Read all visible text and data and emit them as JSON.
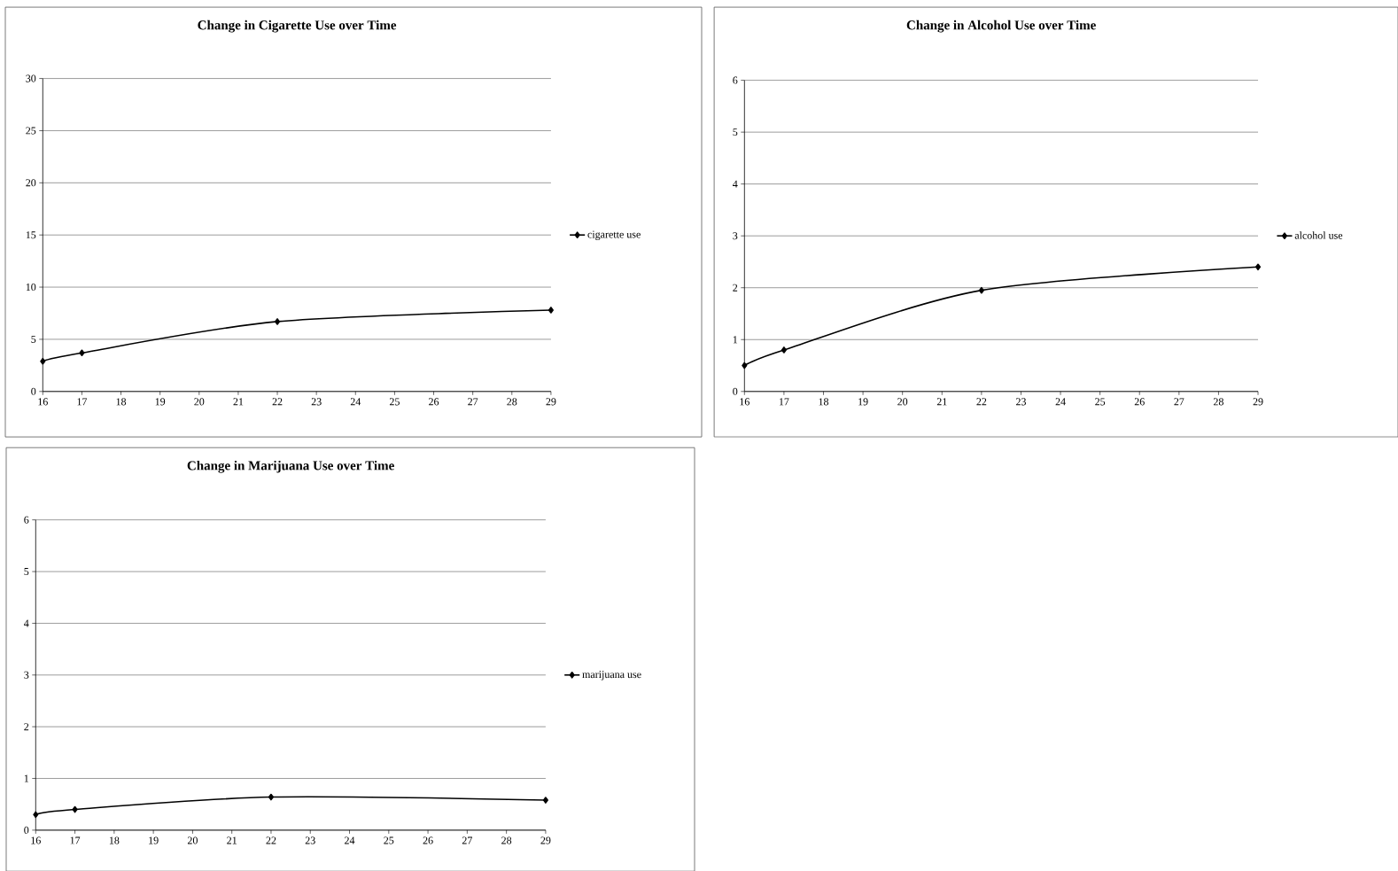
{
  "chart_data": [
    {
      "type": "line",
      "title": "Change in Cigarette Use over Time",
      "x": [
        16,
        17,
        22,
        29
      ],
      "series": [
        {
          "name": "cigarette use",
          "color": "#000000",
          "values": [
            2.9,
            3.7,
            6.7,
            7.8
          ]
        }
      ],
      "xlim": [
        16,
        29
      ],
      "xticks": [
        16,
        17,
        18,
        19,
        20,
        21,
        22,
        23,
        24,
        25,
        26,
        27,
        28,
        29
      ],
      "ylim": [
        0,
        30
      ],
      "yticks": [
        0,
        5,
        10,
        15,
        20,
        25,
        30
      ],
      "grid": "y",
      "legend": "right",
      "marker": "diamond"
    },
    {
      "type": "line",
      "title": "Change in Alcohol Use over Time",
      "x": [
        16,
        17,
        22,
        29
      ],
      "series": [
        {
          "name": "alcohol use",
          "color": "#000000",
          "values": [
            0.5,
            0.8,
            1.95,
            2.4
          ]
        }
      ],
      "xlim": [
        16,
        29
      ],
      "xticks": [
        16,
        17,
        18,
        19,
        20,
        21,
        22,
        23,
        24,
        25,
        26,
        27,
        28,
        29
      ],
      "ylim": [
        0,
        6
      ],
      "yticks": [
        0,
        1,
        2,
        3,
        4,
        5,
        6
      ],
      "grid": "y",
      "legend": "right",
      "marker": "diamond"
    },
    {
      "type": "line",
      "title": "Change in Marijuana Use over Time",
      "x": [
        16,
        17,
        22,
        29
      ],
      "series": [
        {
          "name": "marijuana use",
          "color": "#000000",
          "values": [
            0.3,
            0.4,
            0.64,
            0.58
          ]
        }
      ],
      "xlim": [
        16,
        29
      ],
      "xticks": [
        16,
        17,
        18,
        19,
        20,
        21,
        22,
        23,
        24,
        25,
        26,
        27,
        28,
        29
      ],
      "ylim": [
        0,
        6
      ],
      "yticks": [
        0,
        1,
        2,
        3,
        4,
        5,
        6
      ],
      "grid": "y",
      "legend": "right",
      "marker": "diamond"
    }
  ]
}
